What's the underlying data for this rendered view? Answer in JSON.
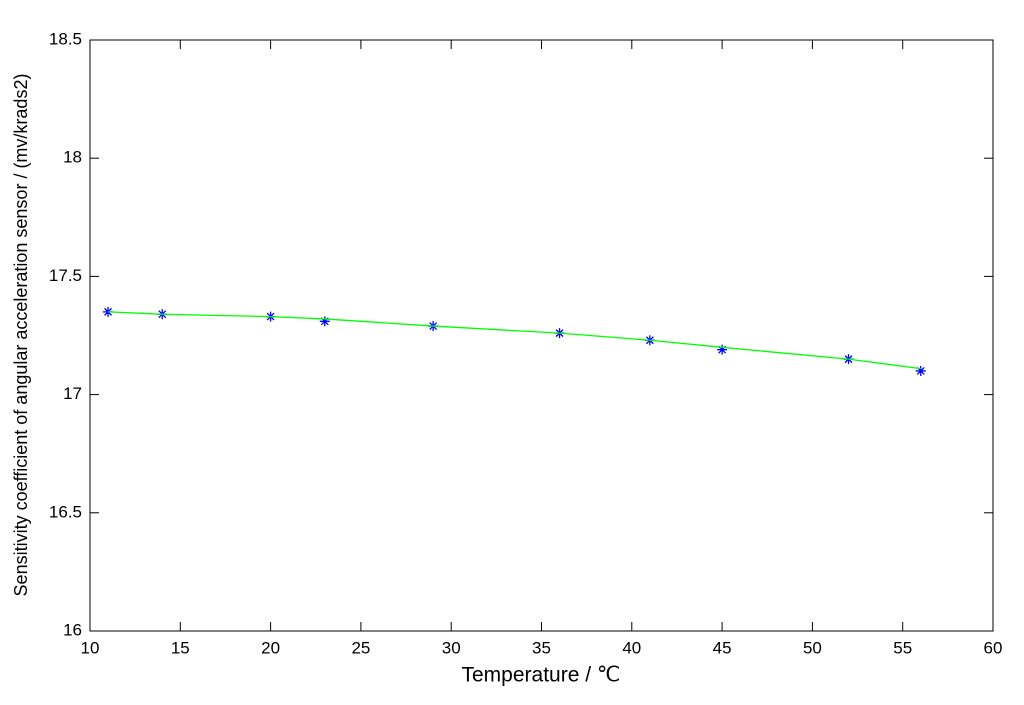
{
  "chart_data": {
    "type": "line",
    "x_label": "Temperature / ℃",
    "y_label": "Sensitivity coefficient of angular acceleration sensor / (mv/krads2)",
    "x": [
      11,
      14,
      20,
      23,
      29,
      36,
      41,
      45,
      52,
      56
    ],
    "series": [
      {
        "color": "#0000ff",
        "marker": "*",
        "line": false,
        "values": [
          17.35,
          17.34,
          17.33,
          17.31,
          17.29,
          17.26,
          17.23,
          17.19,
          17.15,
          17.1
        ]
      },
      {
        "color": "#00ff00",
        "marker": null,
        "line": true,
        "values": [
          17.35,
          17.34,
          17.33,
          17.32,
          17.29,
          17.26,
          17.23,
          17.2,
          17.15,
          17.11
        ]
      }
    ],
    "xlim": [
      10,
      60
    ],
    "xticks": [
      10,
      15,
      20,
      25,
      30,
      35,
      40,
      45,
      50,
      55,
      60
    ],
    "ylim": [
      16,
      18.5
    ],
    "yticks": [
      16,
      16.5,
      17,
      17.5,
      18,
      18.5
    ],
    "grid": false
  }
}
